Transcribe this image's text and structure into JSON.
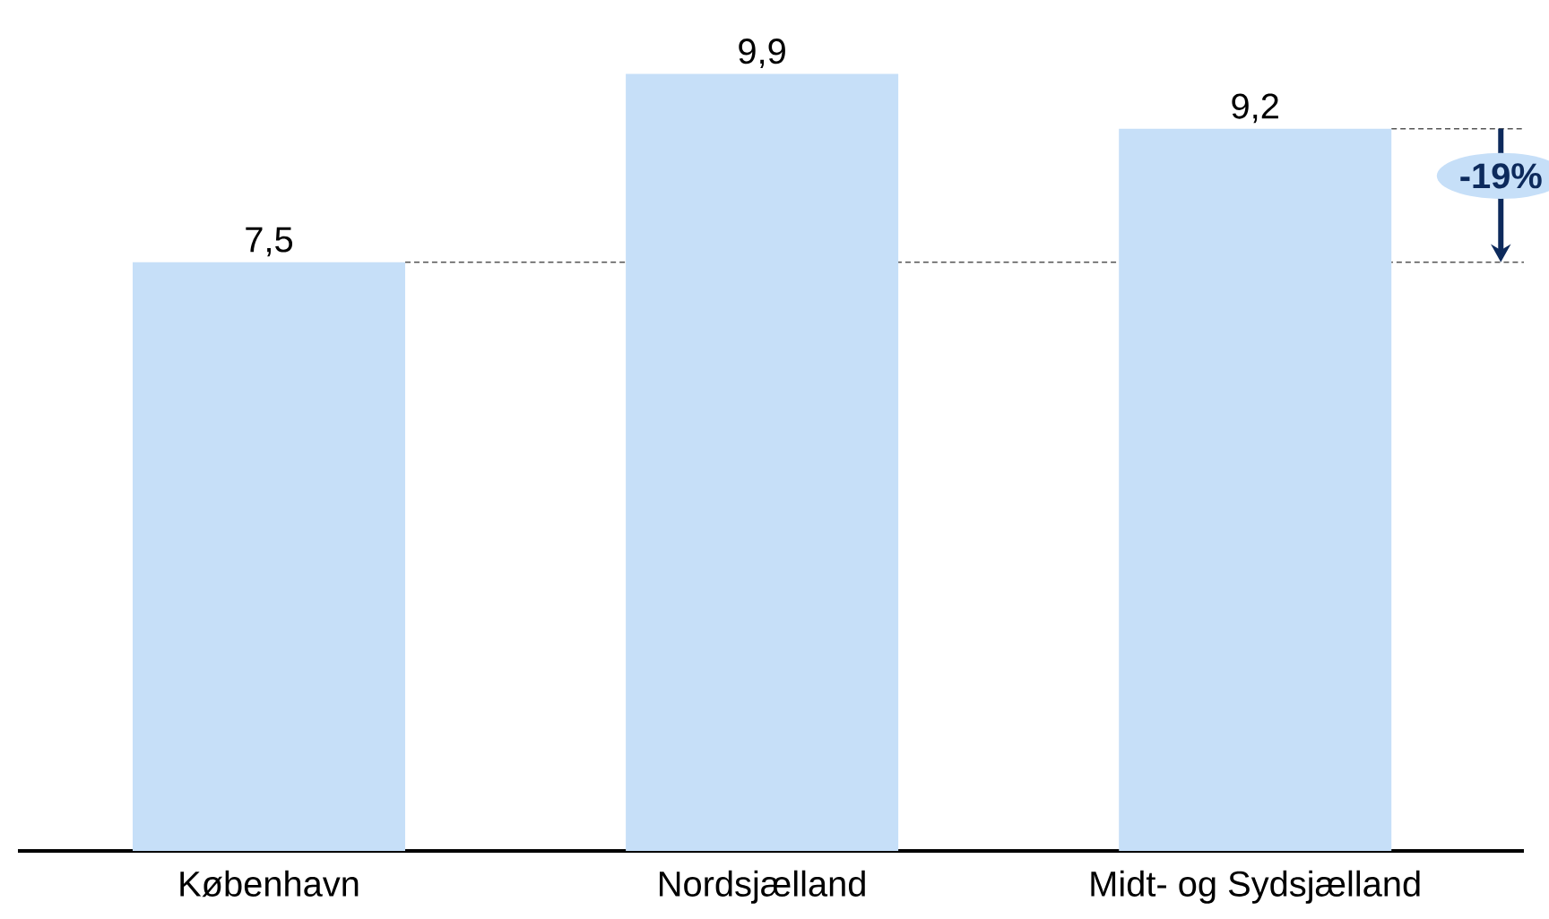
{
  "chart_data": {
    "type": "bar",
    "categories": [
      "København",
      "Nordsjælland",
      "Midt- og Sydsjælland"
    ],
    "values": [
      7.5,
      9.9,
      9.2
    ],
    "value_labels": [
      "7,5",
      "9,9",
      "9,2"
    ],
    "color": "#c6dff8",
    "ref_lines": [
      {
        "axis": "y",
        "value": 7.5,
        "color": "#555555",
        "line_style": "dashed"
      },
      {
        "axis": "y",
        "value": 9.2,
        "color": "#555555",
        "line_style": "dashed"
      }
    ],
    "annotations": [
      "-19%"
    ]
  }
}
